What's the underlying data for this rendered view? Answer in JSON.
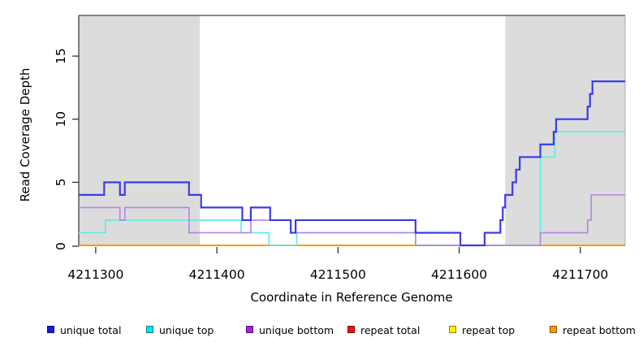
{
  "axes": {
    "x_label": "Coordinate in Reference Genome",
    "y_label": "Read Coverage Depth"
  },
  "chart_data": {
    "type": "line",
    "subtype": "step-coverage-plot",
    "title": "",
    "xlabel": "Coordinate in Reference Genome",
    "ylabel": "Read Coverage Depth",
    "xlim": [
      4211286,
      4211737
    ],
    "ylim": [
      0,
      18.3
    ],
    "x_ticks": [
      4211300,
      4211400,
      4211500,
      4211600,
      4211700
    ],
    "y_ticks": [
      0,
      5,
      10,
      15
    ],
    "grid": false,
    "legend_position": "bottom",
    "background_color": "#ffffff",
    "shaded_region_color": "#dcdcdc",
    "shaded_regions": [
      {
        "x0": 4211286,
        "x1": 4211386
      },
      {
        "x0": 4211638,
        "x1": 4211737
      }
    ],
    "series": [
      {
        "name": "unique total",
        "color": "#1a1ad9",
        "line_color": "#3b3be8",
        "width": 2.2,
        "steps": [
          [
            4211286,
            4
          ],
          [
            4211307,
            5
          ],
          [
            4211320,
            4
          ],
          [
            4211324,
            5
          ],
          [
            4211377,
            4
          ],
          [
            4211387,
            3
          ],
          [
            4211421,
            2
          ],
          [
            4211428,
            3
          ],
          [
            4211444,
            2
          ],
          [
            4211461,
            1
          ],
          [
            4211465,
            2
          ],
          [
            4211564,
            1
          ],
          [
            4211601,
            0
          ],
          [
            4211621,
            1
          ],
          [
            4211634,
            2
          ],
          [
            4211636,
            3
          ],
          [
            4211638,
            4
          ],
          [
            4211644,
            5
          ],
          [
            4211647,
            6
          ],
          [
            4211650,
            7
          ],
          [
            4211667,
            8
          ],
          [
            4211678,
            9
          ],
          [
            4211680,
            10
          ],
          [
            4211706,
            11
          ],
          [
            4211708,
            12
          ],
          [
            4211710,
            13
          ]
        ]
      },
      {
        "name": "unique top",
        "color": "#00e5e5",
        "line_color": "#55efe2",
        "width": 1.6,
        "steps": [
          [
            4211286,
            1
          ],
          [
            4211308,
            2
          ],
          [
            4211420,
            1
          ],
          [
            4211443,
            0
          ],
          [
            4211466,
            1
          ],
          [
            4211564,
            0
          ],
          [
            4211667,
            7
          ],
          [
            4211679,
            9
          ]
        ]
      },
      {
        "name": "unique bottom",
        "color": "#a020f0",
        "line_color": "#b086e0",
        "width": 1.6,
        "steps": [
          [
            4211286,
            3
          ],
          [
            4211320,
            2
          ],
          [
            4211324,
            3
          ],
          [
            4211377,
            1
          ],
          [
            4211428,
            2
          ],
          [
            4211461,
            1
          ],
          [
            4211564,
            0
          ],
          [
            4211667,
            1
          ],
          [
            4211706,
            2
          ],
          [
            4211709,
            4
          ]
        ]
      },
      {
        "name": "repeat total",
        "color": "#ee1111",
        "line_color": "#cc3355",
        "width": 1.6,
        "steps": [
          [
            4211286,
            0
          ]
        ]
      },
      {
        "name": "repeat top",
        "color": "#ffee00",
        "line_color": "#ffee00",
        "width": 1.4,
        "steps": [
          [
            4211286,
            0
          ]
        ]
      },
      {
        "name": "repeat bottom",
        "color": "#ff9800",
        "line_color": "#ff9800",
        "width": 2.0,
        "steps": [
          [
            4211286,
            0
          ]
        ]
      }
    ],
    "draw_order": [
      "repeat top",
      "repeat total",
      "repeat bottom",
      "unique top",
      "unique bottom",
      "unique total"
    ]
  }
}
